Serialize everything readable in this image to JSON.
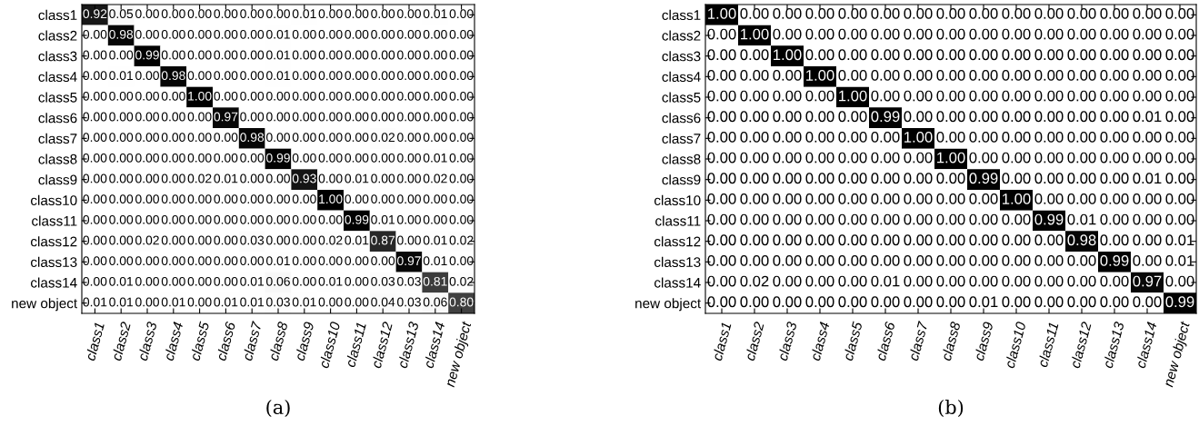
{
  "chart_data": [
    {
      "type": "heatmap",
      "annotations": [
        "(a)"
      ],
      "categories": [
        "class1",
        "class2",
        "class3",
        "class4",
        "class5",
        "class6",
        "class7",
        "class8",
        "class9",
        "class10",
        "class11",
        "class12",
        "class13",
        "class14",
        "new object"
      ],
      "y_categories": [
        "class1",
        "class2",
        "class3",
        "class4",
        "class5",
        "class6",
        "class7",
        "class8",
        "class9",
        "class10",
        "class11",
        "class12",
        "class13",
        "class14",
        "new object"
      ],
      "cells": [
        [
          0.92,
          0.05,
          0,
          0,
          0,
          0,
          0,
          0,
          0.01,
          0,
          0,
          0,
          0,
          0.01,
          0
        ],
        [
          0,
          0.98,
          0,
          0,
          0,
          0,
          0,
          0.01,
          0,
          0,
          0,
          0,
          0,
          0,
          0
        ],
        [
          0,
          0,
          0.99,
          0,
          0,
          0,
          0,
          0.01,
          0,
          0,
          0,
          0,
          0,
          0,
          0
        ],
        [
          0,
          0.01,
          0,
          0.98,
          0,
          0,
          0,
          0.01,
          0,
          0,
          0,
          0,
          0,
          0,
          0
        ],
        [
          0,
          0,
          0,
          0,
          1,
          0,
          0,
          0,
          0,
          0,
          0,
          0,
          0,
          0,
          0
        ],
        [
          0,
          0,
          0,
          0,
          0,
          0.97,
          0,
          0,
          0,
          0,
          0,
          0,
          0,
          0,
          0
        ],
        [
          0,
          0,
          0,
          0,
          0,
          0,
          0.98,
          0,
          0,
          0,
          0,
          0.02,
          0,
          0,
          0
        ],
        [
          0,
          0,
          0,
          0,
          0,
          0,
          0,
          0.99,
          0,
          0,
          0,
          0,
          0,
          0.01,
          0
        ],
        [
          0,
          0,
          0,
          0,
          0.02,
          0.01,
          0,
          0,
          0.93,
          0,
          0.01,
          0,
          0,
          0.02,
          0
        ],
        [
          0,
          0,
          0,
          0,
          0,
          0,
          0,
          0,
          0,
          1,
          0,
          0,
          0,
          0,
          0
        ],
        [
          0,
          0,
          0,
          0,
          0,
          0,
          0,
          0,
          0,
          0,
          0.99,
          0.01,
          0,
          0,
          0
        ],
        [
          0,
          0,
          0.02,
          0,
          0,
          0,
          0.03,
          0,
          0,
          0.02,
          0.01,
          0.87,
          0,
          0.01,
          0.02
        ],
        [
          0,
          0,
          0,
          0,
          0,
          0,
          0,
          0.01,
          0,
          0,
          0,
          0,
          0.97,
          0.01,
          0
        ],
        [
          0,
          0.01,
          0,
          0,
          0,
          0,
          0.01,
          0.06,
          0,
          0.01,
          0,
          0.03,
          0.03,
          0.81,
          0.02
        ],
        [
          0.01,
          0.01,
          0,
          0.01,
          0,
          0.01,
          0.01,
          0.03,
          0.01,
          0,
          0,
          0.04,
          0.03,
          0.06,
          0.8
        ]
      ],
      "cell_labels": [
        [
          "0.92",
          "0.05",
          "0.00",
          "0.00",
          "0.00",
          "0.00",
          "0.00",
          "0.00",
          "0.01",
          "0.00",
          "0.00",
          "0.00",
          "0.00",
          "0.01",
          "0.00"
        ],
        [
          "0.00",
          "0.98",
          "0.00",
          "0.00",
          "0.00",
          "0.00",
          "0.00",
          "0.01",
          "0.00",
          "0.00",
          "0.00",
          "0.00",
          "0.00",
          "0.00",
          "0.00"
        ],
        [
          "0.00",
          "0.00",
          "0.99",
          "0.00",
          "0.00",
          "0.00",
          "0.00",
          "0.01",
          "0.00",
          "0.00",
          "0.00",
          "0.00",
          "0.00",
          "0.00",
          "0.00"
        ],
        [
          "0.00",
          "0.01",
          "0.00",
          "0.98",
          "0.00",
          "0.00",
          "0.00",
          "0.01",
          "0.00",
          "0.00",
          "0.00",
          "0.00",
          "0.00",
          "0.00",
          "0.00"
        ],
        [
          "0.00",
          "0.00",
          "0.00",
          "0.00",
          "1.00",
          "0.00",
          "0.00",
          "0.00",
          "0.00",
          "0.00",
          "0.00",
          "0.00",
          "0.00",
          "0.00",
          "0.00"
        ],
        [
          "0.00",
          "0.00",
          "0.00",
          "0.00",
          "0.00",
          "0.97",
          "0.00",
          "0.00",
          "0.00",
          "0.00",
          "0.00",
          "0.00",
          "0.00",
          "0.00",
          "0.00"
        ],
        [
          "0.00",
          "0.00",
          "0.00",
          "0.00",
          "0.00",
          "0.00",
          "0.98",
          "0.00",
          "0.00",
          "0.00",
          "0.00",
          "0.02",
          "0.00",
          "0.00",
          "0.00"
        ],
        [
          "0.00",
          "0.00",
          "0.00",
          "0.00",
          "0.00",
          "0.00",
          "0.00",
          "0.99",
          "0.00",
          "0.00",
          "0.00",
          "0.00",
          "0.00",
          "0.01",
          "0.00"
        ],
        [
          "0.00",
          "0.00",
          "0.00",
          "0.00",
          "0.02",
          "0.01",
          "0.00",
          "0.00",
          "0.93",
          "0.00",
          "0.01",
          "0.00",
          "0.00",
          "0.02",
          "0.00"
        ],
        [
          "0.00",
          "0.00",
          "0.00",
          "0.00",
          "0.00",
          "0.00",
          "0.00",
          "0.00",
          "0.00",
          "1.00",
          "0.00",
          "0.00",
          "0.00",
          "0.00",
          "0.00"
        ],
        [
          "0.00",
          "0.00",
          "0.00",
          "0.00",
          "0.00",
          "0.00",
          "0.00",
          "0.00",
          "0.00",
          "0.00",
          "0.99",
          "0.01",
          "0.00",
          "0.00",
          "0.00"
        ],
        [
          "0.00",
          "0.00",
          "0.02",
          "0.00",
          "0.00",
          "0.00",
          "0.03",
          "0.00",
          "0.00",
          "0.02",
          "0.01",
          "0.87",
          "0.00",
          "0.01",
          "0.02"
        ],
        [
          "0.00",
          "0.00",
          "0.00",
          "0.00",
          "0.00",
          "0.00",
          "0.00",
          "0.01",
          "0.00",
          "0.00",
          "0.00",
          "0.00",
          "0.97",
          "0.01",
          "0.00"
        ],
        [
          "0.00",
          "0.01",
          "0.00",
          "0.00",
          "0.00",
          "0.00",
          "0.01",
          "0.06",
          "0.00",
          "0.01",
          "0.00",
          "0.03",
          "0.03",
          "0.81",
          "0.02"
        ],
        [
          "0.01",
          "0.01",
          "0.00",
          "0.01",
          "0.00",
          "0.01",
          "0.01",
          "0.03",
          "0.01",
          "0.00",
          "0.00",
          "0.04",
          "0.03",
          "0.06",
          "0.80"
        ]
      ]
    },
    {
      "type": "heatmap",
      "annotations": [
        "(b)"
      ],
      "categories": [
        "class1",
        "class2",
        "class3",
        "class4",
        "class5",
        "class6",
        "class7",
        "class8",
        "class9",
        "class10",
        "class11",
        "class12",
        "class13",
        "class14",
        "new object"
      ],
      "y_categories": [
        "class1",
        "class2",
        "class3",
        "class4",
        "class5",
        "class6",
        "class7",
        "class8",
        "class9",
        "class10",
        "class11",
        "class12",
        "class13",
        "class14",
        "new object"
      ],
      "cells": [
        [
          1,
          0,
          0,
          0,
          0,
          0,
          0,
          0,
          0,
          0,
          0,
          0,
          0,
          0,
          0
        ],
        [
          0,
          1,
          0,
          0,
          0,
          0,
          0,
          0,
          0,
          0,
          0,
          0,
          0,
          0,
          0
        ],
        [
          0,
          0,
          1,
          0,
          0,
          0,
          0,
          0,
          0,
          0,
          0,
          0,
          0,
          0,
          0
        ],
        [
          0,
          0,
          0,
          1,
          0,
          0,
          0,
          0,
          0,
          0,
          0,
          0,
          0,
          0,
          0
        ],
        [
          0,
          0,
          0,
          0,
          1,
          0,
          0,
          0,
          0,
          0,
          0,
          0,
          0,
          0,
          0
        ],
        [
          0,
          0,
          0,
          0,
          0,
          0.99,
          0,
          0,
          0,
          0,
          0,
          0,
          0,
          0.01,
          0
        ],
        [
          0,
          0,
          0,
          0,
          0,
          0,
          1,
          0,
          0,
          0,
          0,
          0,
          0,
          0,
          0
        ],
        [
          0,
          0,
          0,
          0,
          0,
          0,
          0,
          1,
          0,
          0,
          0,
          0,
          0,
          0,
          0
        ],
        [
          0,
          0,
          0,
          0,
          0,
          0,
          0,
          0,
          0.99,
          0,
          0,
          0,
          0,
          0.01,
          0
        ],
        [
          0,
          0,
          0,
          0,
          0,
          0,
          0,
          0,
          0,
          1,
          0,
          0,
          0,
          0,
          0
        ],
        [
          0,
          0,
          0,
          0,
          0,
          0,
          0,
          0,
          0,
          0,
          0.99,
          0.01,
          0,
          0,
          0
        ],
        [
          0,
          0,
          0,
          0,
          0,
          0,
          0,
          0,
          0,
          0,
          0,
          0.98,
          0,
          0,
          0.01
        ],
        [
          0,
          0,
          0,
          0,
          0,
          0,
          0,
          0,
          0,
          0,
          0,
          0,
          0.99,
          0,
          0.01
        ],
        [
          0,
          0.02,
          0,
          0,
          0,
          0.01,
          0,
          0,
          0,
          0,
          0,
          0,
          0,
          0.97,
          0
        ],
        [
          0,
          0,
          0,
          0,
          0,
          0,
          0,
          0,
          0.01,
          0,
          0,
          0,
          0,
          0,
          0.99
        ]
      ],
      "cell_labels": [
        [
          "1.00",
          "0.00",
          "0.00",
          "0.00",
          "0.00",
          "0.00",
          "0.00",
          "0.00",
          "0.00",
          "0.00",
          "0.00",
          "0.00",
          "0.00",
          "0.00",
          "0.00"
        ],
        [
          "0.00",
          "1.00",
          "0.00",
          "0.00",
          "0.00",
          "0.00",
          "0.00",
          "0.00",
          "0.00",
          "0.00",
          "0.00",
          "0.00",
          "0.00",
          "0.00",
          "0.00"
        ],
        [
          "0.00",
          "0.00",
          "1.00",
          "0.00",
          "0.00",
          "0.00",
          "0.00",
          "0.00",
          "0.00",
          "0.00",
          "0.00",
          "0.00",
          "0.00",
          "0.00",
          "0.00"
        ],
        [
          "0.00",
          "0.00",
          "0.00",
          "1.00",
          "0.00",
          "0.00",
          "0.00",
          "0.00",
          "0.00",
          "0.00",
          "0.00",
          "0.00",
          "0.00",
          "0.00",
          "0.00"
        ],
        [
          "0.00",
          "0.00",
          "0.00",
          "0.00",
          "1.00",
          "0.00",
          "0.00",
          "0.00",
          "0.00",
          "0.00",
          "0.00",
          "0.00",
          "0.00",
          "0.00",
          "0.00"
        ],
        [
          "0.00",
          "0.00",
          "0.00",
          "0.00",
          "0.00",
          "0.99",
          "0.00",
          "0.00",
          "0.00",
          "0.00",
          "0.00",
          "0.00",
          "0.00",
          "0.01",
          "0.00"
        ],
        [
          "0.00",
          "0.00",
          "0.00",
          "0.00",
          "0.00",
          "0.00",
          "1.00",
          "0.00",
          "0.00",
          "0.00",
          "0.00",
          "0.00",
          "0.00",
          "0.00",
          "0.00"
        ],
        [
          "0.00",
          "0.00",
          "0.00",
          "0.00",
          "0.00",
          "0.00",
          "0.00",
          "1.00",
          "0.00",
          "0.00",
          "0.00",
          "0.00",
          "0.00",
          "0.00",
          "0.00"
        ],
        [
          "0.00",
          "0.00",
          "0.00",
          "0.00",
          "0.00",
          "0.00",
          "0.00",
          "0.00",
          "0.99",
          "0.00",
          "0.00",
          "0.00",
          "0.00",
          "0.01",
          "0.00"
        ],
        [
          "0.00",
          "0.00",
          "0.00",
          "0.00",
          "0.00",
          "0.00",
          "0.00",
          "0.00",
          "0.00",
          "1.00",
          "0.00",
          "0.00",
          "0.00",
          "0.00",
          "0.00"
        ],
        [
          "0.00",
          "0.00",
          "0.00",
          "0.00",
          "0.00",
          "0.00",
          "0.00",
          "0.00",
          "0.00",
          "0.00",
          "0.99",
          "0.01",
          "0.00",
          "0.00",
          "0.00"
        ],
        [
          "0.00",
          "0.00",
          "0.00",
          "0.00",
          "0.00",
          "0.00",
          "0.00",
          "0.00",
          "0.00",
          "0.00",
          "0.00",
          "0.98",
          "0.00",
          "0.00",
          "0.01"
        ],
        [
          "0.00",
          "0.00",
          "0.00",
          "0.00",
          "0.00",
          "0.00",
          "0.00",
          "0.00",
          "0.00",
          "0.00",
          "0.00",
          "0.00",
          "0.99",
          "0.00",
          "0.01"
        ],
        [
          "0.00",
          "0.02",
          "0.00",
          "0.00",
          "0.00",
          "0.01",
          "0.00",
          "0.00",
          "0.00",
          "0.00",
          "0.00",
          "0.00",
          "0.00",
          "0.97",
          "0.00"
        ],
        [
          "0.00",
          "0.00",
          "0.00",
          "0.00",
          "0.00",
          "0.00",
          "0.00",
          "0.00",
          "0.01",
          "0.00",
          "0.00",
          "0.00",
          "0.00",
          "0.00",
          "0.99"
        ]
      ]
    }
  ]
}
